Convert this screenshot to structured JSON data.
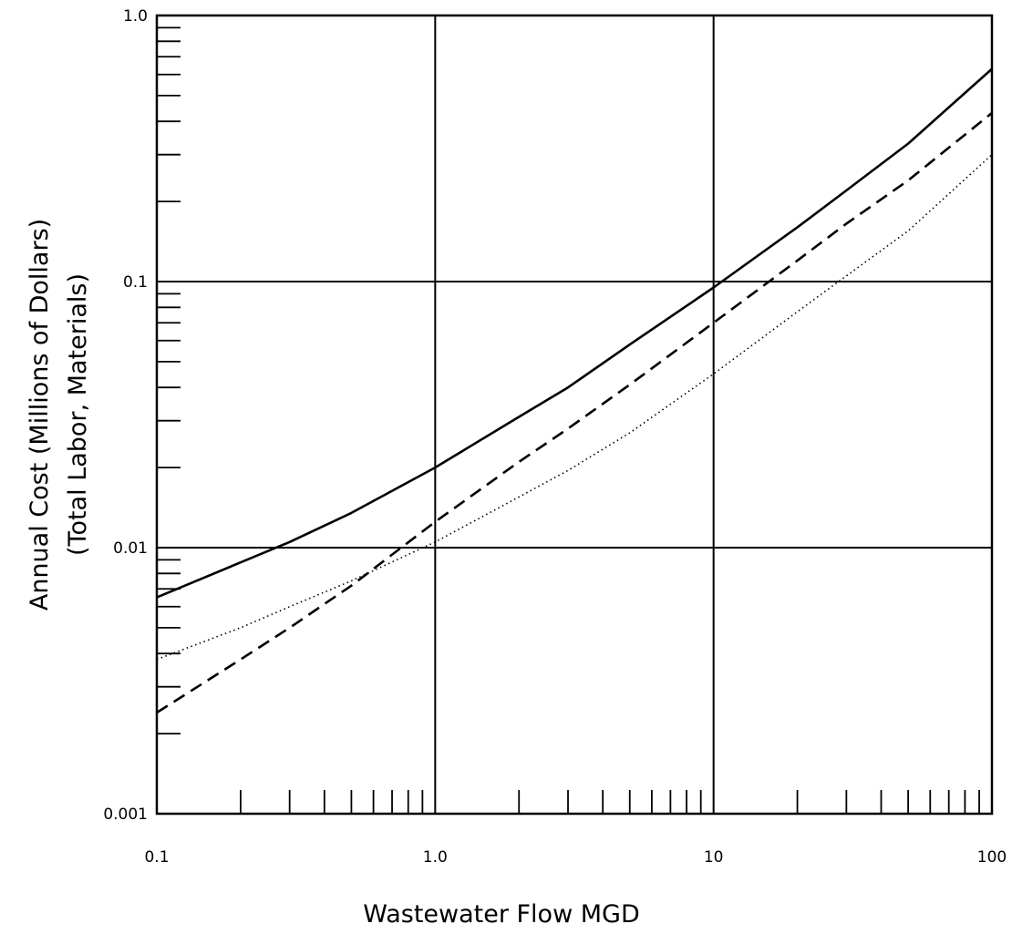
{
  "chart_data": {
    "type": "line",
    "title": "",
    "xlabel": "Wastewater Flow MGD",
    "ylabel_line1": "Annual Cost (Millions of Dollars)",
    "ylabel_line2": "(Total Labor, Materials)",
    "x_scale": "log",
    "y_scale": "log",
    "xlim": [
      0.1,
      100
    ],
    "ylim": [
      0.001,
      1.0
    ],
    "x_tick_labels": [
      {
        "value": 0.1,
        "label": "0.1"
      },
      {
        "value": 1,
        "label": "1.0"
      },
      {
        "value": 10,
        "label": "10"
      },
      {
        "value": 100,
        "label": "100"
      }
    ],
    "y_tick_labels": [
      {
        "value": 0.001,
        "label": "0.001"
      },
      {
        "value": 0.01,
        "label": "0.01"
      },
      {
        "value": 0.1,
        "label": "0.1"
      },
      {
        "value": 1.0,
        "label": "1.0"
      }
    ],
    "grid": "major decades",
    "legend": "none",
    "series": [
      {
        "style": "solid",
        "x": [
          0.1,
          0.2,
          0.3,
          0.5,
          1,
          2,
          3,
          5,
          10,
          20,
          30,
          50,
          100
        ],
        "y": [
          0.0065,
          0.0088,
          0.0105,
          0.0135,
          0.02,
          0.031,
          0.04,
          0.058,
          0.095,
          0.16,
          0.22,
          0.33,
          0.63
        ]
      },
      {
        "style": "dashed",
        "x": [
          0.1,
          0.2,
          0.3,
          0.5,
          1,
          2,
          3,
          5,
          10,
          20,
          30,
          50,
          100
        ],
        "y": [
          0.0024,
          0.0038,
          0.005,
          0.0072,
          0.0125,
          0.021,
          0.028,
          0.041,
          0.07,
          0.12,
          0.165,
          0.24,
          0.43
        ]
      },
      {
        "style": "dotted",
        "x": [
          0.1,
          0.2,
          0.3,
          0.5,
          1,
          2,
          3,
          5,
          10,
          20,
          30,
          50,
          100
        ],
        "y": [
          0.0038,
          0.005,
          0.006,
          0.0075,
          0.0105,
          0.0155,
          0.0195,
          0.027,
          0.045,
          0.077,
          0.105,
          0.155,
          0.3
        ]
      }
    ]
  }
}
